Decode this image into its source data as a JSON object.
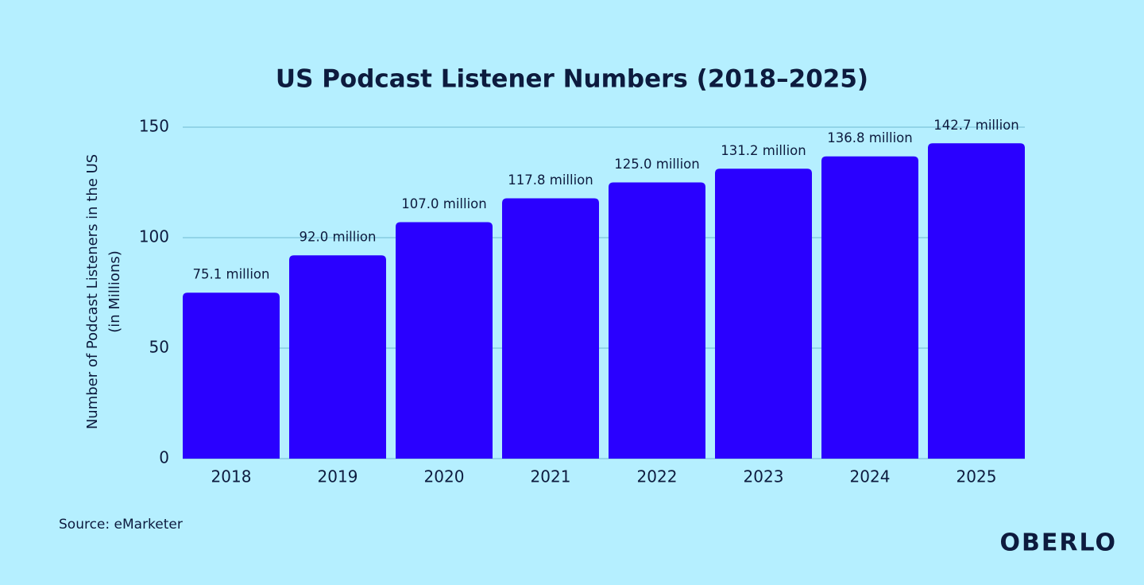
{
  "chart_data": {
    "type": "bar",
    "title": "US Podcast Listener Numbers (2018–2025)",
    "y_label": [
      "Number of Podcast Listeners in the US",
      "(in Millions)"
    ],
    "categories": [
      "2018",
      "2019",
      "2020",
      "2021",
      "2022",
      "2023",
      "2024",
      "2025"
    ],
    "values": [
      75.1,
      92.0,
      107.0,
      117.8,
      125.0,
      131.2,
      136.8,
      142.7
    ],
    "value_labels": [
      "75.1 million",
      "92.0 million",
      "107.0 million",
      "117.8 million",
      "125.0 million",
      "131.2 million",
      "136.8 million",
      "142.7 million"
    ],
    "color": "#2a00ff",
    "ylim": [
      0,
      150
    ],
    "yticks": [
      0,
      50,
      100,
      150
    ],
    "grid": true,
    "source": "Source: eMarketer",
    "brand": "OBERLO"
  }
}
